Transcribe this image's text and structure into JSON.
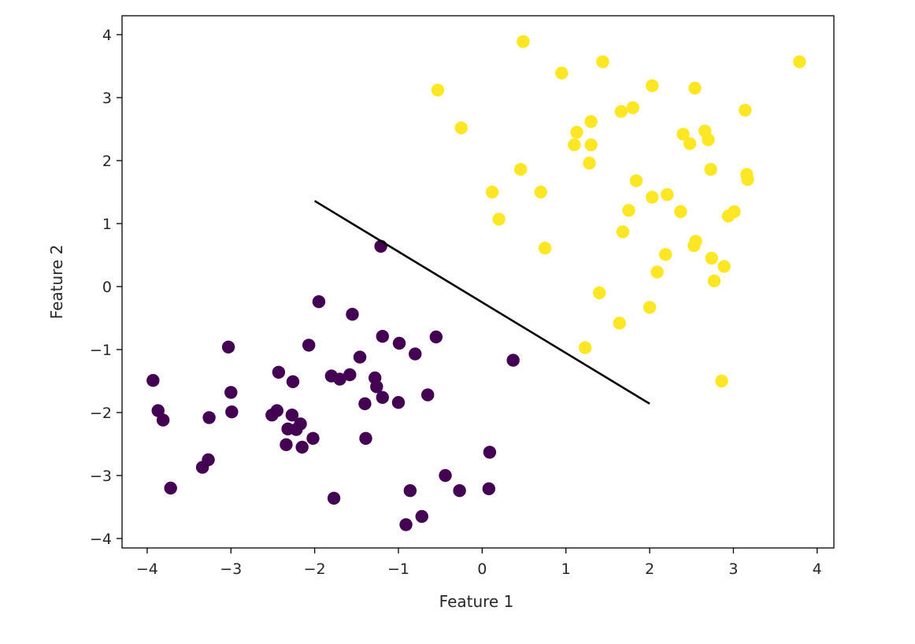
{
  "chart_data": {
    "type": "scatter",
    "title": "",
    "xlabel": "Feature 1",
    "ylabel": "Feature 2",
    "xlim": [
      -4.3,
      4.2
    ],
    "ylim": [
      -4.15,
      4.3
    ],
    "xticks": [
      -4,
      -3,
      -2,
      -1,
      0,
      1,
      2,
      3,
      4
    ],
    "yticks": [
      -4,
      -3,
      -2,
      -1,
      0,
      1,
      2,
      3,
      4
    ],
    "xtick_labels": [
      "−4",
      "−3",
      "−2",
      "−1",
      "0",
      "1",
      "2",
      "3",
      "4"
    ],
    "ytick_labels": [
      "−4",
      "−3",
      "−2",
      "−1",
      "0",
      "1",
      "2",
      "3",
      "4"
    ],
    "grid": false,
    "legend": false,
    "series": [
      {
        "class": 0,
        "color": "#440154",
        "points": [
          [
            -3.93,
            -1.49
          ],
          [
            -3.87,
            -1.97
          ],
          [
            -3.81,
            -2.12
          ],
          [
            -3.72,
            -3.2
          ],
          [
            -3.34,
            -2.87
          ],
          [
            -3.27,
            -2.75
          ],
          [
            -3.26,
            -2.08
          ],
          [
            -3.03,
            -0.96
          ],
          [
            -3.0,
            -1.68
          ],
          [
            -2.99,
            -1.99
          ],
          [
            -2.51,
            -2.04
          ],
          [
            -2.45,
            -1.97
          ],
          [
            -2.43,
            -1.36
          ],
          [
            -2.34,
            -2.51
          ],
          [
            -2.32,
            -2.26
          ],
          [
            -2.27,
            -2.04
          ],
          [
            -2.26,
            -1.51
          ],
          [
            -2.22,
            -2.27
          ],
          [
            -2.17,
            -2.18
          ],
          [
            -2.15,
            -2.55
          ],
          [
            -2.07,
            -0.93
          ],
          [
            -2.02,
            -2.41
          ],
          [
            -1.95,
            -0.24
          ],
          [
            -1.8,
            -1.42
          ],
          [
            -1.77,
            -3.36
          ],
          [
            -1.7,
            -1.47
          ],
          [
            -1.58,
            -1.4
          ],
          [
            -1.55,
            -0.44
          ],
          [
            -1.46,
            -1.12
          ],
          [
            -1.4,
            -1.86
          ],
          [
            -1.39,
            -2.41
          ],
          [
            -1.28,
            -1.45
          ],
          [
            -1.26,
            -1.59
          ],
          [
            -1.21,
            0.64
          ],
          [
            -1.19,
            -1.76
          ],
          [
            -1.19,
            -0.79
          ],
          [
            -0.99,
            -0.9
          ],
          [
            -1.0,
            -1.84
          ],
          [
            -0.91,
            -3.78
          ],
          [
            -0.86,
            -3.24
          ],
          [
            -0.8,
            -1.07
          ],
          [
            -0.72,
            -3.65
          ],
          [
            -0.65,
            -1.72
          ],
          [
            -0.55,
            -0.8
          ],
          [
            -0.44,
            -3.0
          ],
          [
            -0.27,
            -3.24
          ],
          [
            0.08,
            -3.21
          ],
          [
            0.09,
            -2.63
          ],
          [
            0.37,
            -1.17
          ]
        ]
      },
      {
        "class": 1,
        "color": "#fde725",
        "points": [
          [
            -0.53,
            3.12
          ],
          [
            -0.25,
            2.52
          ],
          [
            0.12,
            1.5
          ],
          [
            0.2,
            1.07
          ],
          [
            0.46,
            1.86
          ],
          [
            0.49,
            3.89
          ],
          [
            0.7,
            1.5
          ],
          [
            0.75,
            0.61
          ],
          [
            0.95,
            3.39
          ],
          [
            1.1,
            2.25
          ],
          [
            1.13,
            2.45
          ],
          [
            1.23,
            -0.97
          ],
          [
            1.28,
            1.96
          ],
          [
            1.3,
            2.25
          ],
          [
            1.3,
            2.62
          ],
          [
            1.4,
            -0.1
          ],
          [
            1.44,
            3.57
          ],
          [
            1.64,
            -0.58
          ],
          [
            1.66,
            2.78
          ],
          [
            1.68,
            0.87
          ],
          [
            1.75,
            1.21
          ],
          [
            1.8,
            2.84
          ],
          [
            1.84,
            1.68
          ],
          [
            2.0,
            -0.33
          ],
          [
            2.03,
            1.42
          ],
          [
            2.03,
            3.19
          ],
          [
            2.09,
            0.23
          ],
          [
            2.19,
            0.51
          ],
          [
            2.21,
            1.46
          ],
          [
            2.37,
            1.19
          ],
          [
            2.4,
            2.42
          ],
          [
            2.48,
            2.27
          ],
          [
            2.53,
            0.65
          ],
          [
            2.55,
            0.72
          ],
          [
            2.54,
            3.15
          ],
          [
            2.66,
            2.47
          ],
          [
            2.7,
            2.33
          ],
          [
            2.73,
            1.86
          ],
          [
            2.74,
            0.45
          ],
          [
            2.77,
            0.09
          ],
          [
            2.86,
            -1.5
          ],
          [
            2.89,
            0.32
          ],
          [
            2.94,
            1.12
          ],
          [
            3.01,
            1.19
          ],
          [
            3.14,
            2.8
          ],
          [
            3.16,
            1.78
          ],
          [
            3.17,
            1.7
          ],
          [
            3.79,
            3.57
          ]
        ]
      }
    ],
    "line": {
      "color": "#000000",
      "points": [
        [
          -2.0,
          1.36
        ],
        [
          2.0,
          -1.86
        ]
      ]
    }
  }
}
